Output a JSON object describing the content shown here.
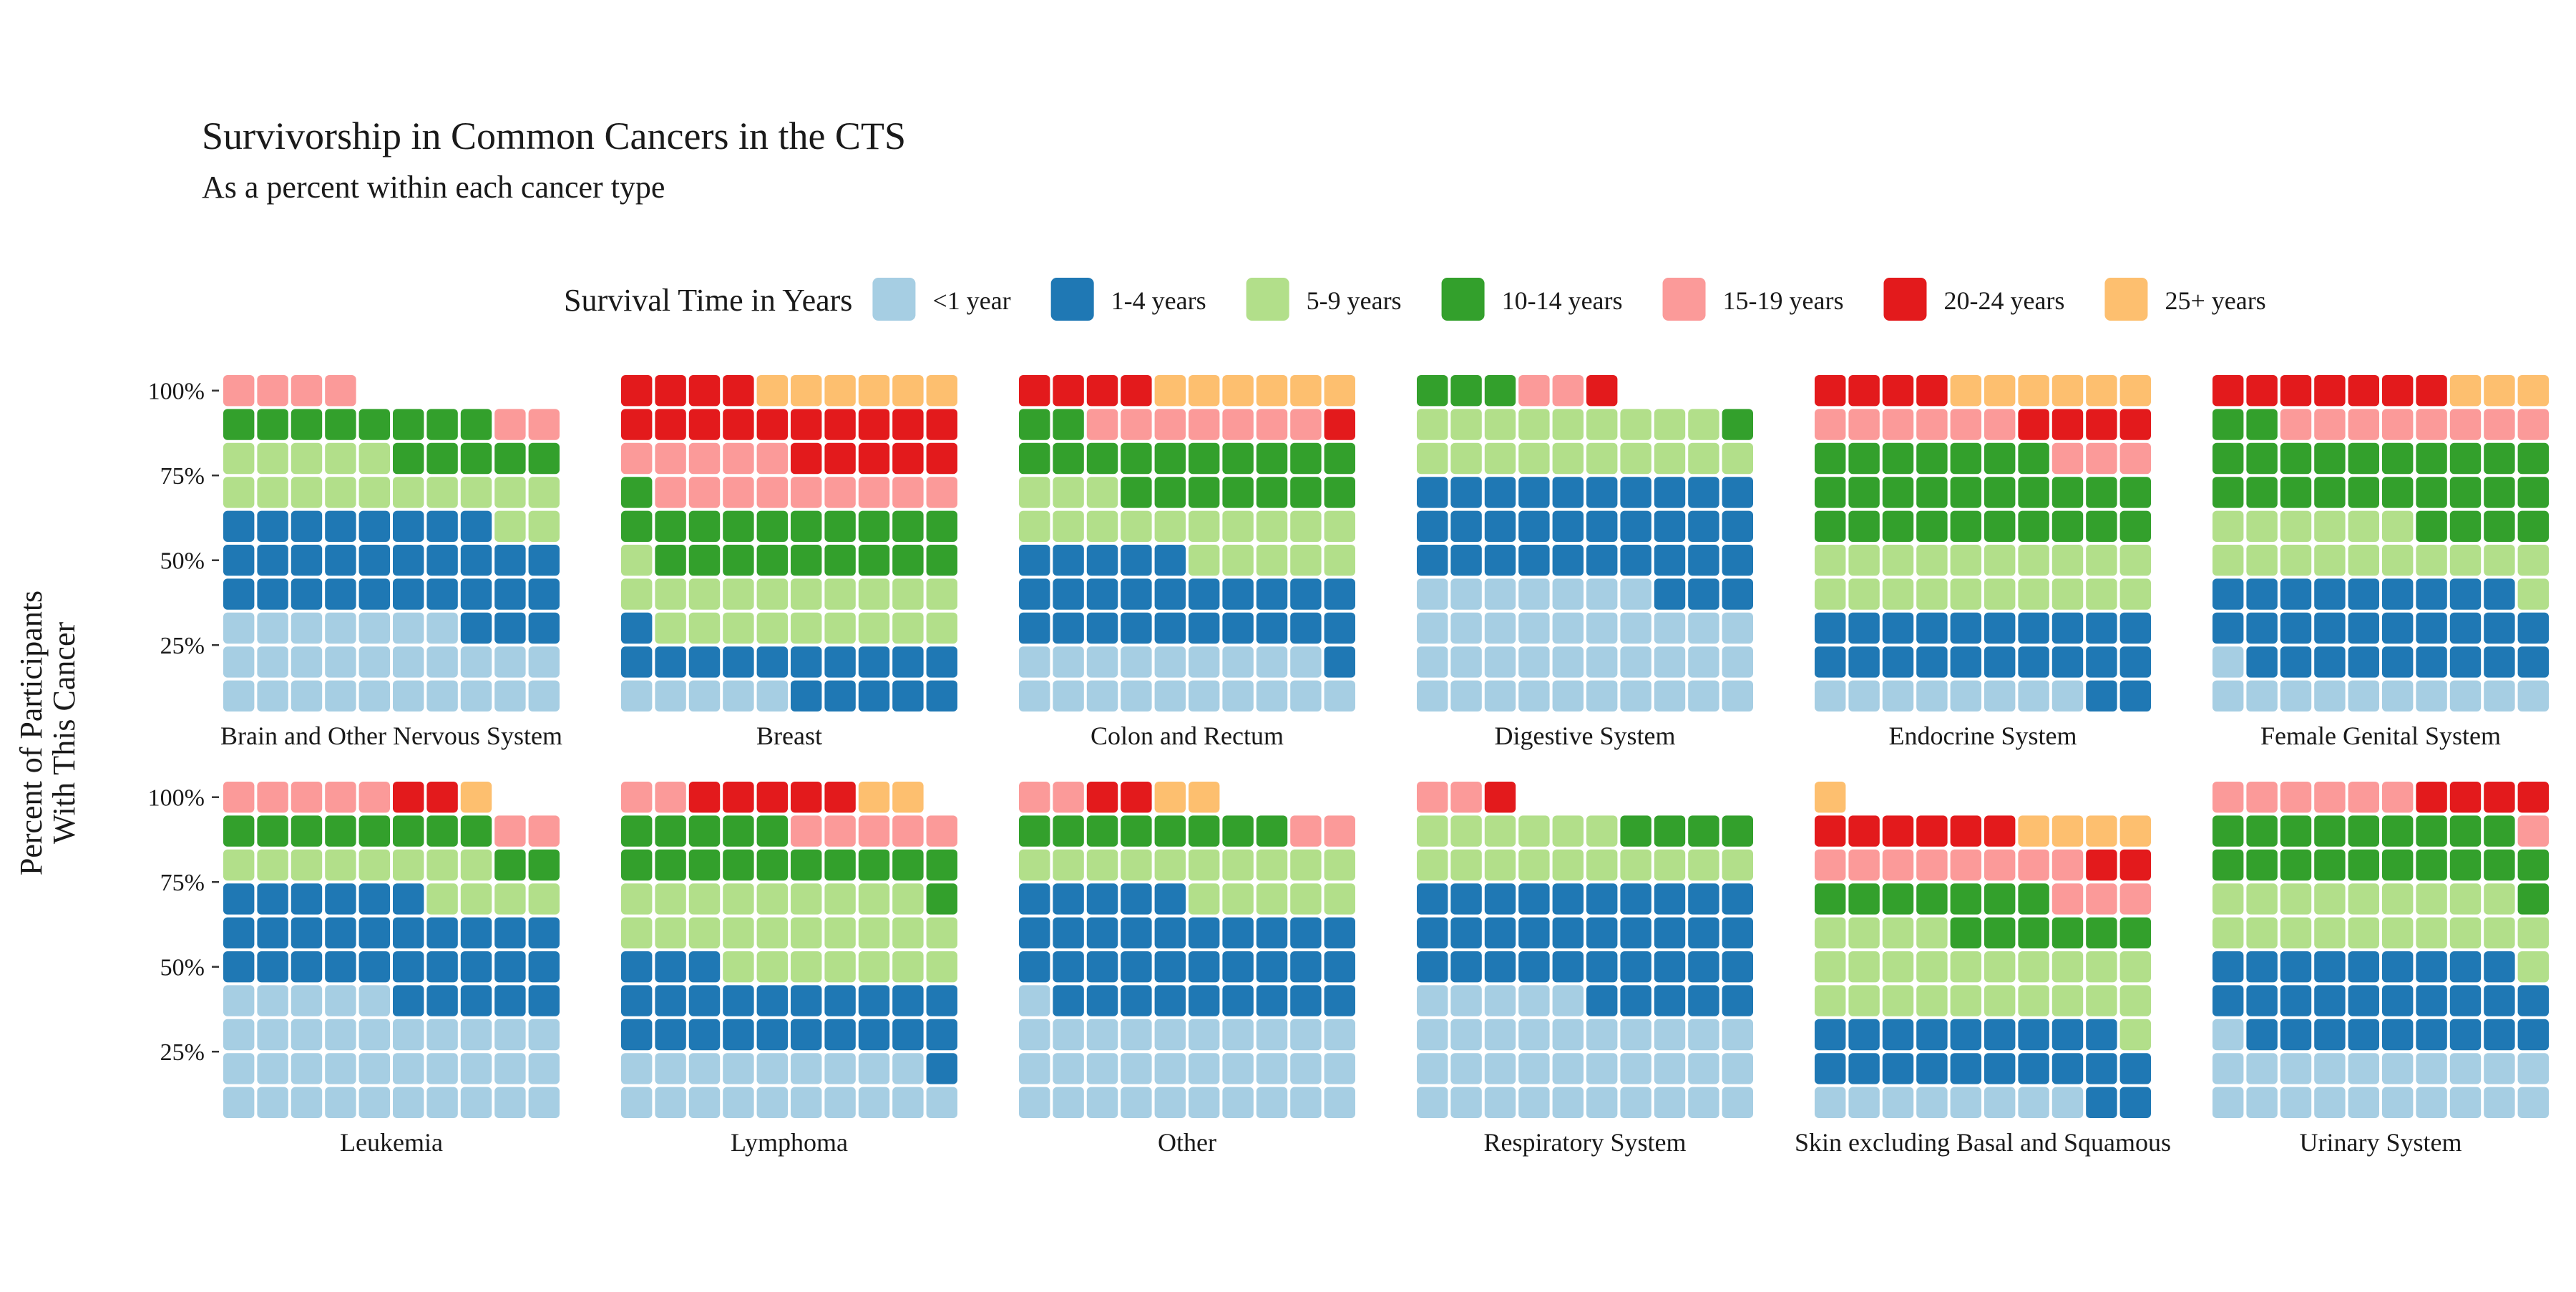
{
  "chart_data": {
    "type": "waffle",
    "title": "Survivorship in Common Cancers in the CTS",
    "subtitle": "As a percent within each cancer type",
    "ylabel_lines": [
      "Percent of Participants",
      "With This Cancer"
    ],
    "y_ticks": [
      "100%",
      "75%",
      "50%",
      "25%"
    ],
    "legend_title": "Survival Time in Years",
    "legend_position": "top",
    "grid_rows": 10,
    "grid_cols": 10,
    "categories": [
      {
        "label": "<1 year",
        "color": "#a6cee3"
      },
      {
        "label": "1-4 years",
        "color": "#1f78b4"
      },
      {
        "label": "5-9 years",
        "color": "#b2df8a"
      },
      {
        "label": "10-14 years",
        "color": "#33a02c"
      },
      {
        "label": "15-19 years",
        "color": "#fb9a99"
      },
      {
        "label": "20-24 years",
        "color": "#e31a1c"
      },
      {
        "label": "25+ years",
        "color": "#fdbf6f"
      }
    ],
    "panels": [
      {
        "name": "Brain and Other Nervous System",
        "counts": [
          27,
          31,
          17,
          13,
          6,
          0,
          0
        ]
      },
      {
        "name": "Breast",
        "counts": [
          5,
          16,
          20,
          20,
          14,
          19,
          6
        ]
      },
      {
        "name": "Colon and Rectum",
        "counts": [
          19,
          26,
          18,
          19,
          7,
          5,
          6
        ]
      },
      {
        "name": "Digestive System",
        "counts": [
          37,
          33,
          19,
          4,
          2,
          1,
          0
        ]
      },
      {
        "name": "Endocrine System",
        "counts": [
          8,
          22,
          20,
          27,
          9,
          8,
          8
        ]
      },
      {
        "name": "Female Genital System",
        "counts": [
          11,
          28,
          17,
          26,
          8,
          7,
          10
        ]
      },
      {
        "name": "Leukemia",
        "counts": [
          35,
          31,
          12,
          10,
          7,
          2,
          1
        ]
      },
      {
        "name": "Lymphoma",
        "counts": [
          19,
          24,
          26,
          16,
          7,
          5,
          2
        ]
      },
      {
        "name": "Other",
        "counts": [
          31,
          34,
          15,
          8,
          4,
          2,
          2
        ]
      },
      {
        "name": "Respiratory System",
        "counts": [
          35,
          35,
          16,
          4,
          2,
          1,
          0
        ]
      },
      {
        "name": "Skin excluding Basal and Squamous",
        "counts": [
          8,
          21,
          25,
          13,
          11,
          8,
          5
        ]
      },
      {
        "name": "Urinary System",
        "counts": [
          21,
          28,
          20,
          20,
          7,
          4,
          2
        ]
      }
    ]
  }
}
